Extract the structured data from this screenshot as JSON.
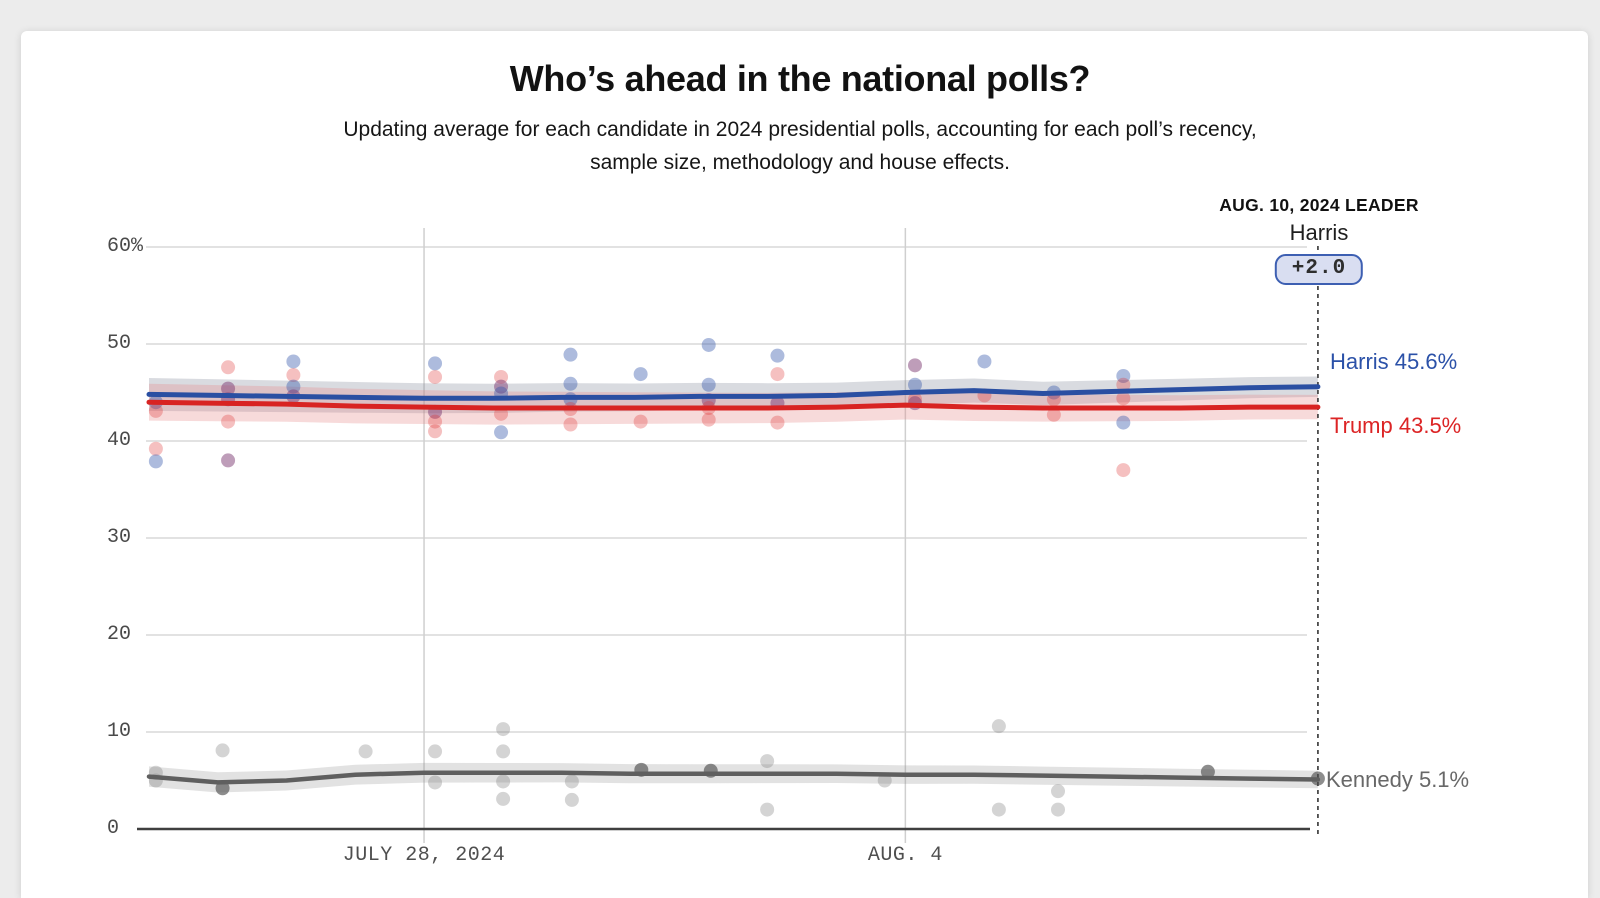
{
  "page": {
    "background": "#ececec",
    "card_background": "#ffffff"
  },
  "header": {
    "title": "Who’s ahead in the national polls?",
    "subtitle_line1": "Updating average for each candidate in 2024 presidential polls, accounting for each poll’s recency,",
    "subtitle_line2": "sample size, methodology and house effects."
  },
  "leader": {
    "date_label": "AUG. 10, 2024 LEADER",
    "name": "Harris",
    "margin": "+2.0",
    "badge_border_color": "#3d5fb2",
    "badge_background_color": "#d9def1"
  },
  "chart_data": {
    "type": "line",
    "title": "Who’s ahead in the national polls?",
    "x_range_days": [
      "July 24, 2024",
      "Aug. 10, 2024"
    ],
    "ylim": [
      0,
      62
    ],
    "grid": true,
    "x_ticks": [
      {
        "day": 4,
        "label": "JULY 28, 2024"
      },
      {
        "day": 11,
        "label": "AUG. 4"
      }
    ],
    "y_ticks": [
      {
        "value": 60,
        "label": "60%"
      },
      {
        "value": 50,
        "label": "50"
      },
      {
        "value": 40,
        "label": "40"
      },
      {
        "value": 30,
        "label": "30"
      },
      {
        "value": 20,
        "label": "20"
      },
      {
        "value": 10,
        "label": "10"
      },
      {
        "value": 0,
        "label": "0"
      }
    ],
    "leader_line_day": 17,
    "series": [
      {
        "name": "Harris",
        "label": "Harris 45.6%",
        "final_value": 45.6,
        "color": "#2a4fa2",
        "label_color": "#2b51a8",
        "band_color": "rgba(130,136,152,0.30)",
        "band_halfwidth_start": 1.7,
        "band_halfwidth_end": 1.05,
        "values": [
          44.8,
          44.7,
          44.6,
          44.5,
          44.4,
          44.4,
          44.5,
          44.5,
          44.6,
          44.6,
          44.7,
          45.0,
          45.2,
          44.9,
          45.1,
          45.3,
          45.5,
          45.6
        ]
      },
      {
        "name": "Trump",
        "label": "Trump 43.5%",
        "final_value": 43.5,
        "color": "#d82322",
        "label_color": "#dc2425",
        "band_color": "rgba(231,140,140,0.32)",
        "band_halfwidth_start": 1.9,
        "band_halfwidth_end": 1.25,
        "values": [
          44.0,
          43.9,
          43.8,
          43.6,
          43.5,
          43.4,
          43.4,
          43.4,
          43.4,
          43.4,
          43.5,
          43.7,
          43.5,
          43.4,
          43.4,
          43.4,
          43.5,
          43.5
        ]
      },
      {
        "name": "Kennedy",
        "label": "Kennedy 5.1%",
        "final_value": 5.1,
        "color": "#5f5f5f",
        "label_color": "#686868",
        "band_color": "rgba(140,140,140,0.25)",
        "band_halfwidth_start": 1.05,
        "band_halfwidth_end": 0.9,
        "values": [
          5.4,
          4.8,
          5.0,
          5.6,
          5.8,
          5.8,
          5.8,
          5.7,
          5.7,
          5.7,
          5.7,
          5.6,
          5.6,
          5.5,
          5.4,
          5.3,
          5.2,
          5.1
        ]
      }
    ],
    "poll_dot_colors": {
      "blue": "rgba(50,85,170,0.40)",
      "red": "rgba(222,45,45,0.30)",
      "purple": "rgba(125,60,115,0.50)",
      "gray": "rgba(125,125,125,0.33)",
      "gray_dark": "rgba(80,80,80,0.65)"
    },
    "presidential_poll_dots": [
      [
        0.1,
        44.0,
        "blue"
      ],
      [
        0.1,
        43.1,
        "red"
      ],
      [
        0.1,
        39.2,
        "red"
      ],
      [
        0.1,
        37.9,
        "blue"
      ],
      [
        1.15,
        47.6,
        "red"
      ],
      [
        1.15,
        45.4,
        "purple"
      ],
      [
        1.15,
        44.3,
        "purple"
      ],
      [
        1.15,
        42.0,
        "red"
      ],
      [
        1.15,
        38.0,
        "purple"
      ],
      [
        2.1,
        48.2,
        "blue"
      ],
      [
        2.1,
        46.8,
        "red"
      ],
      [
        2.1,
        45.6,
        "blue"
      ],
      [
        2.1,
        44.6,
        "purple"
      ],
      [
        4.16,
        48.0,
        "blue"
      ],
      [
        4.16,
        46.6,
        "red"
      ],
      [
        4.16,
        43.0,
        "purple"
      ],
      [
        4.16,
        42.0,
        "red"
      ],
      [
        4.16,
        41.0,
        "red"
      ],
      [
        5.12,
        46.6,
        "red"
      ],
      [
        5.12,
        45.6,
        "purple"
      ],
      [
        5.12,
        44.9,
        "blue"
      ],
      [
        5.12,
        42.8,
        "red"
      ],
      [
        5.12,
        40.9,
        "blue"
      ],
      [
        6.13,
        48.9,
        "blue"
      ],
      [
        6.13,
        45.9,
        "blue"
      ],
      [
        6.13,
        44.3,
        "blue"
      ],
      [
        6.13,
        43.3,
        "red"
      ],
      [
        6.13,
        41.7,
        "red"
      ],
      [
        7.15,
        46.9,
        "blue"
      ],
      [
        7.15,
        42.0,
        "red"
      ],
      [
        8.14,
        49.9,
        "blue"
      ],
      [
        8.14,
        45.8,
        "blue"
      ],
      [
        8.14,
        44.2,
        "purple"
      ],
      [
        8.14,
        43.4,
        "red"
      ],
      [
        8.14,
        42.2,
        "red"
      ],
      [
        9.14,
        48.8,
        "blue"
      ],
      [
        9.14,
        46.9,
        "red"
      ],
      [
        9.14,
        43.9,
        "purple"
      ],
      [
        9.14,
        41.9,
        "red"
      ],
      [
        11.14,
        47.8,
        "purple"
      ],
      [
        11.14,
        45.8,
        "blue"
      ],
      [
        11.14,
        44.3,
        "red"
      ],
      [
        11.14,
        43.9,
        "purple"
      ],
      [
        12.15,
        48.2,
        "blue"
      ],
      [
        12.15,
        44.7,
        "red"
      ],
      [
        13.16,
        45.0,
        "blue"
      ],
      [
        13.16,
        44.3,
        "red"
      ],
      [
        13.16,
        42.7,
        "red"
      ],
      [
        14.17,
        46.7,
        "blue"
      ],
      [
        14.17,
        45.8,
        "red"
      ],
      [
        14.17,
        44.4,
        "red"
      ],
      [
        14.17,
        41.9,
        "blue"
      ],
      [
        14.17,
        37.0,
        "red"
      ]
    ],
    "kennedy_poll_dots": [
      [
        0.1,
        5.8,
        "gray"
      ],
      [
        0.1,
        5.0,
        "gray"
      ],
      [
        1.07,
        8.1,
        "gray"
      ],
      [
        1.07,
        4.2,
        "gray_dark"
      ],
      [
        3.15,
        8.0,
        "gray"
      ],
      [
        4.16,
        8.0,
        "gray"
      ],
      [
        4.16,
        4.8,
        "gray"
      ],
      [
        5.15,
        10.3,
        "gray"
      ],
      [
        5.15,
        8.0,
        "gray"
      ],
      [
        5.15,
        4.9,
        "gray"
      ],
      [
        5.15,
        3.1,
        "gray"
      ],
      [
        6.15,
        4.9,
        "gray"
      ],
      [
        6.15,
        3.0,
        "gray"
      ],
      [
        7.16,
        6.1,
        "gray_dark"
      ],
      [
        8.17,
        6.0,
        "gray_dark"
      ],
      [
        8.99,
        7.0,
        "gray"
      ],
      [
        8.99,
        2.0,
        "gray"
      ],
      [
        10.7,
        5.0,
        "gray"
      ],
      [
        12.36,
        10.6,
        "gray"
      ],
      [
        12.36,
        2.0,
        "gray"
      ],
      [
        13.22,
        3.9,
        "gray"
      ],
      [
        13.22,
        2.0,
        "gray"
      ],
      [
        15.4,
        5.9,
        "gray_dark"
      ],
      [
        17.0,
        5.2,
        "gray_dark"
      ]
    ],
    "colors": {
      "gridline": "#d9d9d9",
      "vertical_gridline": "#cfcfcf",
      "baseline": "#3f3f3f",
      "leader_dotted_line": "#4a4a4a"
    }
  }
}
